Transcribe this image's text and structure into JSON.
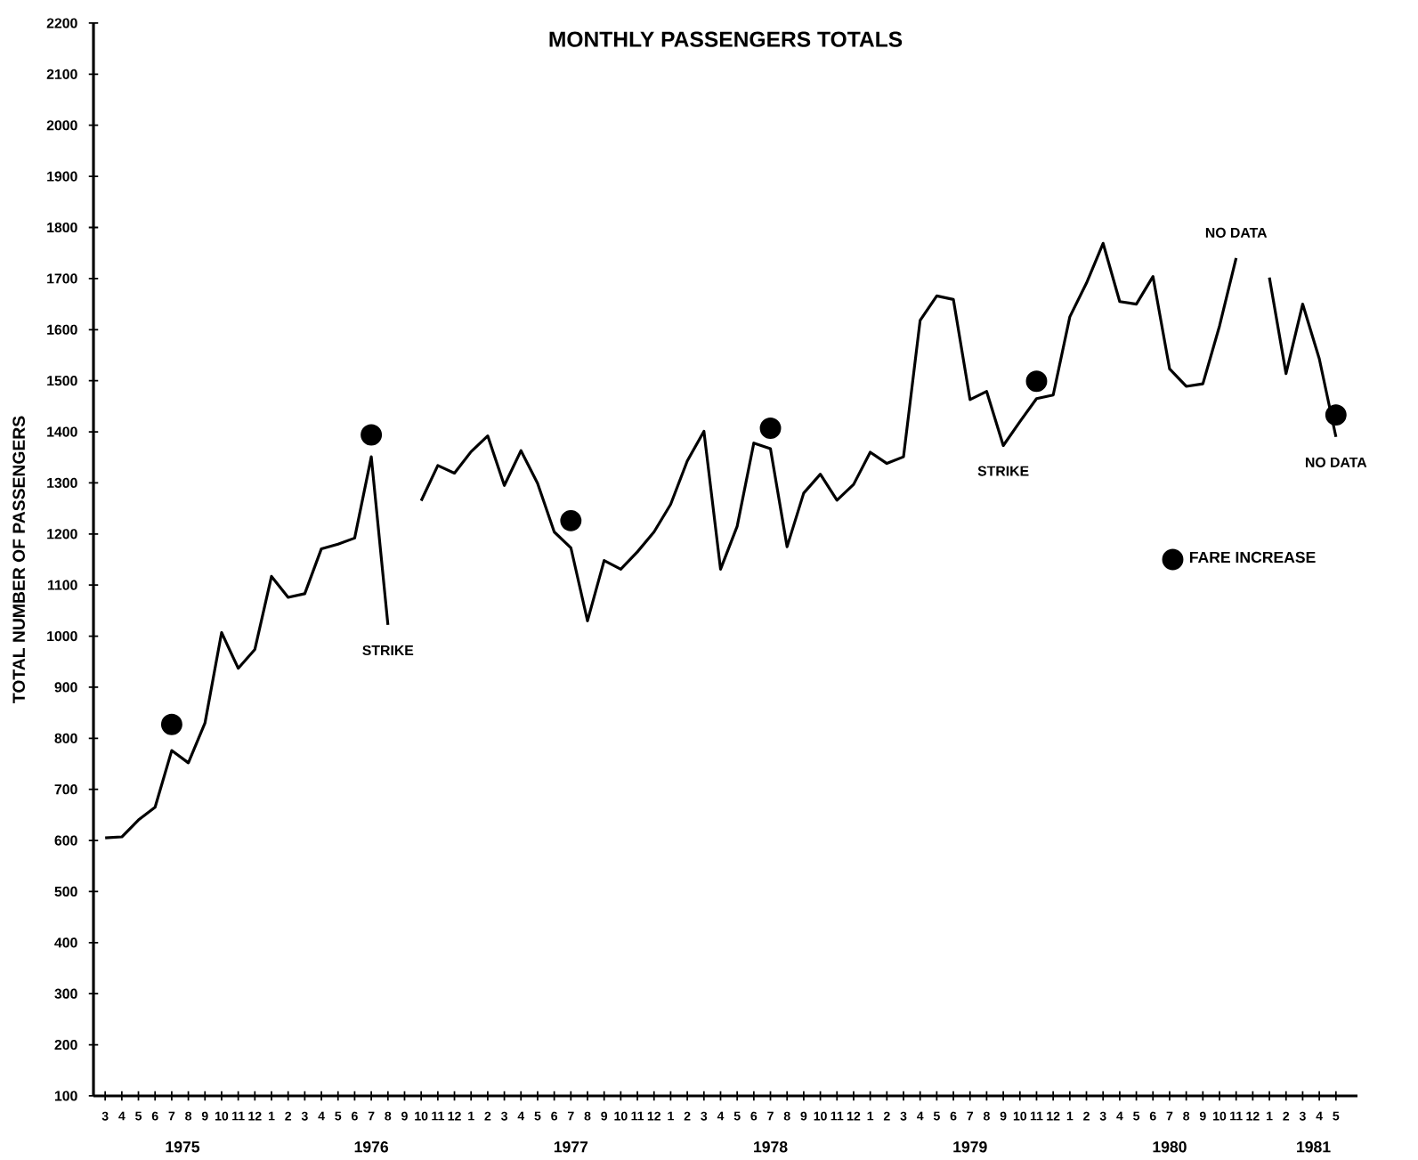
{
  "chart_data": {
    "type": "line",
    "title": "MONTHLY PASSENGERS TOTALS",
    "ylabel": "TOTAL NUMBER OF PASSENGERS",
    "x": [
      "1975-03",
      "1975-04",
      "1975-05",
      "1975-06",
      "1975-07",
      "1975-08",
      "1975-09",
      "1975-10",
      "1975-11",
      "1975-12",
      "1976-01",
      "1976-02",
      "1976-03",
      "1976-04",
      "1976-05",
      "1976-06",
      "1976-07",
      "1976-08",
      "1976-09",
      "1976-10",
      "1976-11",
      "1976-12",
      "1977-01",
      "1977-02",
      "1977-03",
      "1977-04",
      "1977-05",
      "1977-06",
      "1977-07",
      "1977-08",
      "1977-09",
      "1977-10",
      "1977-11",
      "1977-12",
      "1978-01",
      "1978-02",
      "1978-03",
      "1978-04",
      "1978-05",
      "1978-06",
      "1978-07",
      "1978-08",
      "1978-09",
      "1978-10",
      "1978-11",
      "1978-12",
      "1979-01",
      "1979-02",
      "1979-03",
      "1979-04",
      "1979-05",
      "1979-06",
      "1979-07",
      "1979-08",
      "1979-09",
      "1979-10",
      "1979-11",
      "1979-12",
      "1980-01",
      "1980-02",
      "1980-03",
      "1980-04",
      "1980-05",
      "1980-06",
      "1980-07",
      "1980-08",
      "1980-09",
      "1980-10",
      "1980-11",
      "1980-12",
      "1981-01",
      "1981-02",
      "1981-03",
      "1981-04",
      "1981-05"
    ],
    "series": [
      {
        "color": "#000000",
        "values": [
          605,
          607,
          640,
          665,
          776,
          752,
          830,
          1007,
          937,
          974,
          1117,
          1076,
          1083,
          1171,
          1180,
          1192,
          1351,
          1022,
          null,
          1265,
          1334,
          1319,
          1361,
          1392,
          1295,
          1363,
          1299,
          1204,
          1173,
          1030,
          1148,
          1131,
          1165,
          1204,
          1258,
          1343,
          1401,
          1131,
          1215,
          1378,
          1367,
          1175,
          1280,
          1317,
          1266,
          1297,
          1360,
          1338,
          1351,
          1618,
          1666,
          1659,
          1463,
          1479,
          1373,
          1420,
          1465,
          1472,
          1625,
          1691,
          1769,
          1655,
          1650,
          1704,
          1523,
          1489,
          1494,
          1607,
          1740,
          null,
          1702,
          1514,
          1650,
          1543,
          1390
        ]
      },
      {
        "type": "scatter",
        "name": "FARE INCREASE",
        "color": "#000000",
        "marker": "circle",
        "x": [
          "1975-07",
          "1976-07",
          "1977-07",
          "1978-07",
          "1979-11",
          "1981-05"
        ],
        "values": [
          827,
          1394,
          1226,
          1407,
          1499,
          1433
        ]
      }
    ],
    "xlim": [
      "1975-02-10",
      "1981-06-10"
    ],
    "ylim": [
      100,
      2200
    ],
    "yticks": [
      100,
      200,
      300,
      400,
      500,
      600,
      700,
      800,
      900,
      1000,
      1100,
      1200,
      1300,
      1400,
      1500,
      1600,
      1700,
      1800,
      1900,
      2000,
      2100,
      2200
    ],
    "xticks": [
      {
        "value": "1975-03",
        "label": "3"
      },
      {
        "value": "1975-04",
        "label": "4"
      },
      {
        "value": "1975-05",
        "label": "5"
      },
      {
        "value": "1975-06",
        "label": "6"
      },
      {
        "value": "1975-07",
        "label": "7"
      },
      {
        "value": "1975-08",
        "label": "8"
      },
      {
        "value": "1975-09",
        "label": "9"
      },
      {
        "value": "1975-10",
        "label": "10"
      },
      {
        "value": "1975-11",
        "label": "11"
      },
      {
        "value": "1975-12",
        "label": "12"
      },
      {
        "value": "1976-01",
        "label": "1"
      },
      {
        "value": "1976-02",
        "label": "2"
      },
      {
        "value": "1976-03",
        "label": "3"
      },
      {
        "value": "1976-04",
        "label": "4"
      },
      {
        "value": "1976-05",
        "label": "5"
      },
      {
        "value": "1976-06",
        "label": "6"
      },
      {
        "value": "1976-07",
        "label": "7"
      },
      {
        "value": "1976-08",
        "label": "8"
      },
      {
        "value": "1976-09",
        "label": "9"
      },
      {
        "value": "1976-10",
        "label": "10"
      },
      {
        "value": "1976-11",
        "label": "11"
      },
      {
        "value": "1976-12",
        "label": "12"
      },
      {
        "value": "1977-01",
        "label": "1"
      },
      {
        "value": "1977-02",
        "label": "2"
      },
      {
        "value": "1977-03",
        "label": "3"
      },
      {
        "value": "1977-04",
        "label": "4"
      },
      {
        "value": "1977-05",
        "label": "5"
      },
      {
        "value": "1977-06",
        "label": "6"
      },
      {
        "value": "1977-07",
        "label": "7"
      },
      {
        "value": "1977-08",
        "label": "8"
      },
      {
        "value": "1977-09",
        "label": "9"
      },
      {
        "value": "1977-10",
        "label": "10"
      },
      {
        "value": "1977-11",
        "label": "11"
      },
      {
        "value": "1977-12",
        "label": "12"
      },
      {
        "value": "1978-01",
        "label": "1"
      },
      {
        "value": "1978-02",
        "label": "2"
      },
      {
        "value": "1978-03",
        "label": "3"
      },
      {
        "value": "1978-04",
        "label": "4"
      },
      {
        "value": "1978-05",
        "label": "5"
      },
      {
        "value": "1978-06",
        "label": "6"
      },
      {
        "value": "1978-07",
        "label": "7"
      },
      {
        "value": "1978-08",
        "label": "8"
      },
      {
        "value": "1978-09",
        "label": "9"
      },
      {
        "value": "1978-10",
        "label": "10"
      },
      {
        "value": "1978-11",
        "label": "11"
      },
      {
        "value": "1978-12",
        "label": "12"
      },
      {
        "value": "1979-01",
        "label": "1"
      },
      {
        "value": "1979-02",
        "label": "2"
      },
      {
        "value": "1979-03",
        "label": "3"
      },
      {
        "value": "1979-04",
        "label": "4"
      },
      {
        "value": "1979-05",
        "label": "5"
      },
      {
        "value": "1979-06",
        "label": "6"
      },
      {
        "value": "1979-07",
        "label": "7"
      },
      {
        "value": "1979-08",
        "label": "8"
      },
      {
        "value": "1979-09",
        "label": "9"
      },
      {
        "value": "1979-10",
        "label": "10"
      },
      {
        "value": "1979-11",
        "label": "11"
      },
      {
        "value": "1979-12",
        "label": "12"
      },
      {
        "value": "1980-01",
        "label": "1"
      },
      {
        "value": "1980-02",
        "label": "2"
      },
      {
        "value": "1980-03",
        "label": "3"
      },
      {
        "value": "1980-04",
        "label": "4"
      },
      {
        "value": "1980-05",
        "label": "5"
      },
      {
        "value": "1980-06",
        "label": "6"
      },
      {
        "value": "1980-07",
        "label": "7"
      },
      {
        "value": "1980-08",
        "label": "8"
      },
      {
        "value": "1980-09",
        "label": "9"
      },
      {
        "value": "1980-10",
        "label": "10"
      },
      {
        "value": "1980-11",
        "label": "11"
      },
      {
        "value": "1980-12",
        "label": "12"
      },
      {
        "value": "1981-01",
        "label": "1"
      },
      {
        "value": "1981-02",
        "label": "2"
      },
      {
        "value": "1981-03",
        "label": "3"
      },
      {
        "value": "1981-04",
        "label": "4"
      },
      {
        "value": "1981-05",
        "label": "5"
      }
    ],
    "annotations": [
      "1975",
      "1976",
      "1977",
      "1978",
      "1979",
      "1980",
      "1981",
      {
        "text": "STRIKE",
        "x": "1976-08",
        "y": 1022
      },
      {
        "text": "STRIKE",
        "x": "1979-09",
        "y": 1373
      },
      {
        "text": "NO DATA",
        "x": "1980-11",
        "y": 1740
      },
      {
        "text": "NO DATA",
        "x": "1981-05",
        "y": 1390
      }
    ],
    "legend": "right"
  }
}
